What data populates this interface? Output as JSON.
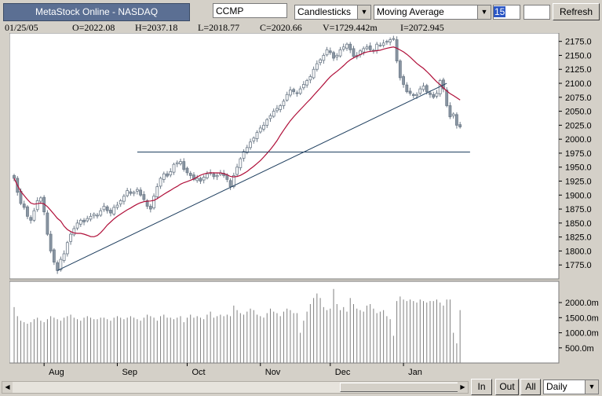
{
  "toolbar": {
    "title": "MetaStock Online - NASDAQ",
    "symbol": "CCMP",
    "chart_style": "Candlesticks",
    "indicator": "Moving Average",
    "period": "15",
    "refresh": "Refresh"
  },
  "info": {
    "date": "01/25/05",
    "open": "O=2022.08",
    "high": "H=2037.18",
    "low": "L=2018.77",
    "close": "C=2020.66",
    "volume": "V=1729.442m",
    "indicator": "I=2072.945"
  },
  "bottom": {
    "in": "In",
    "out": "Out",
    "all": "All",
    "interval": "Daily"
  },
  "chart_data": {
    "type": "candlestick",
    "ma_period": 15,
    "price_ticks": [
      1775,
      1800,
      1825,
      1850,
      1875,
      1900,
      1925,
      1950,
      1975,
      2000,
      2025,
      2050,
      2075,
      2100,
      2125,
      2150,
      2175
    ],
    "price_tick_labels": [
      "1775.0",
      "1800.0",
      "1825.0",
      "1850.0",
      "1875.0",
      "1900.0",
      "1925.0",
      "1950.0",
      "1975.0",
      "2000.0",
      "2025.0",
      "2050.0",
      "2075.0",
      "2100.0",
      "2125.0",
      "2150.0",
      "2175.0"
    ],
    "volume_ticks": [
      500,
      1000,
      1500,
      2000
    ],
    "volume_tick_labels": [
      "500.0m",
      "1000.0m",
      "1500.0m",
      "2000.0m"
    ],
    "months": [
      "Aug",
      "Sep",
      "Oct",
      "Nov",
      "Dec",
      "Jan"
    ],
    "month_start_index": [
      9,
      31,
      52,
      74,
      95,
      117
    ],
    "close": [
      1930,
      1905,
      1885,
      1878,
      1862,
      1855,
      1872,
      1890,
      1895,
      1870,
      1830,
      1800,
      1780,
      1765,
      1785,
      1795,
      1815,
      1830,
      1840,
      1850,
      1855,
      1852,
      1858,
      1862,
      1866,
      1864,
      1872,
      1880,
      1872,
      1868,
      1878,
      1882,
      1890,
      1898,
      1908,
      1903,
      1905,
      1910,
      1900,
      1892,
      1880,
      1875,
      1898,
      1915,
      1930,
      1938,
      1934,
      1942,
      1955,
      1958,
      1960,
      1946,
      1940,
      1935,
      1928,
      1930,
      1925,
      1932,
      1938,
      1940,
      1933,
      1935,
      1940,
      1935,
      1928,
      1915,
      1935,
      1950,
      1965,
      1978,
      1985,
      1995,
      2002,
      2012,
      2020,
      2025,
      2035,
      2042,
      2050,
      2055,
      2060,
      2068,
      2080,
      2088,
      2085,
      2082,
      2090,
      2098,
      2105,
      2112,
      2125,
      2135,
      2142,
      2150,
      2160,
      2155,
      2145,
      2150,
      2160,
      2165,
      2170,
      2160,
      2148,
      2150,
      2158,
      2162,
      2165,
      2160,
      2158,
      2170,
      2168,
      2172,
      2175,
      2178,
      2180,
      2140,
      2110,
      2098,
      2085,
      2082,
      2078,
      2080,
      2090,
      2095,
      2085,
      2080,
      2075,
      2082,
      2105,
      2090,
      2060,
      2040,
      2045,
      2025,
      2022
    ],
    "volume": [
      1850,
      1550,
      1400,
      1350,
      1300,
      1350,
      1450,
      1500,
      1400,
      1350,
      1450,
      1550,
      1500,
      1450,
      1400,
      1500,
      1550,
      1600,
      1500,
      1450,
      1400,
      1500,
      1550,
      1500,
      1450,
      1450,
      1500,
      1500,
      1450,
      1400,
      1500,
      1550,
      1500,
      1450,
      1500,
      1550,
      1500,
      1450,
      1400,
      1500,
      1600,
      1550,
      1500,
      1400,
      1550,
      1600,
      1500,
      1500,
      1450,
      1500,
      1550,
      1350,
      1500,
      1600,
      1500,
      1550,
      1500,
      1450,
      1600,
      1700,
      1500,
      1550,
      1600,
      1550,
      1600,
      1550,
      1900,
      1750,
      1650,
      1600,
      1700,
      1800,
      1750,
      1600,
      1550,
      1500,
      1650,
      1800,
      1700,
      1650,
      1550,
      1700,
      1800,
      1750,
      1650,
      1650,
      1000,
      1400,
      1700,
      1950,
      2150,
      2300,
      2150,
      1850,
      1750,
      1800,
      2450,
      1950,
      1750,
      1850,
      1700,
      2150,
      1950,
      1800,
      1750,
      1700,
      1900,
      1950,
      1800,
      1650,
      1700,
      1750,
      1550,
      1450,
      900,
      2050,
      2200,
      2100,
      2050,
      2100,
      2050,
      2000,
      2100,
      2050,
      2000,
      2050,
      2050,
      2100,
      2000,
      1900,
      2100,
      2100,
      1000,
      650,
      1750
    ],
    "trendlines": [
      {
        "from": [
          13,
          1765
        ],
        "to": [
          130,
          2100
        ]
      },
      {
        "from": [
          37,
          1977
        ],
        "to": [
          137,
          1977
        ]
      }
    ]
  }
}
